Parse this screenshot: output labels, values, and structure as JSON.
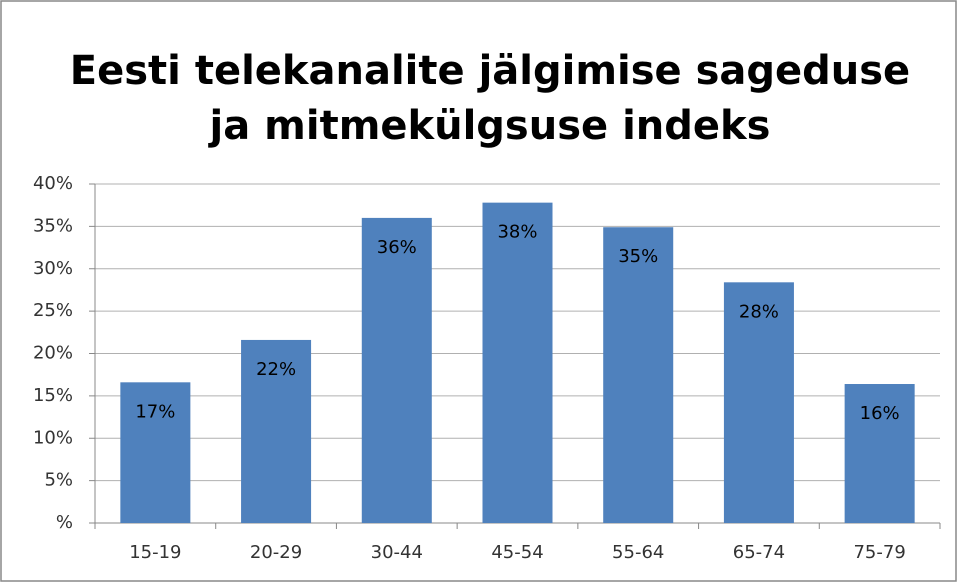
{
  "chart_data": {
    "type": "bar",
    "title": [
      "Eesti telekanalite jälgimise sageduse",
      "ja mitmekülgsuse indeks"
    ],
    "categories": [
      "15-19",
      "20-29",
      "30-44",
      "45-54",
      "55-64",
      "65-74",
      "75-79"
    ],
    "values": [
      16.6,
      21.6,
      36.0,
      37.8,
      34.9,
      28.4,
      16.4
    ],
    "value_labels": [
      "17%",
      "22%",
      "36%",
      "38%",
      "35%",
      "28%",
      "16%"
    ],
    "color": "#4f81bd",
    "ylim": [
      0,
      40
    ],
    "yticks": [
      {
        "value": 0,
        "label": "%"
      },
      {
        "value": 5,
        "label": "5%"
      },
      {
        "value": 10,
        "label": "10%"
      },
      {
        "value": 15,
        "label": "15%"
      },
      {
        "value": 20,
        "label": "20%"
      },
      {
        "value": 25,
        "label": "25%"
      },
      {
        "value": 30,
        "label": "30%"
      },
      {
        "value": 35,
        "label": "35%"
      },
      {
        "value": 40,
        "label": "40%"
      }
    ],
    "grid": true
  }
}
